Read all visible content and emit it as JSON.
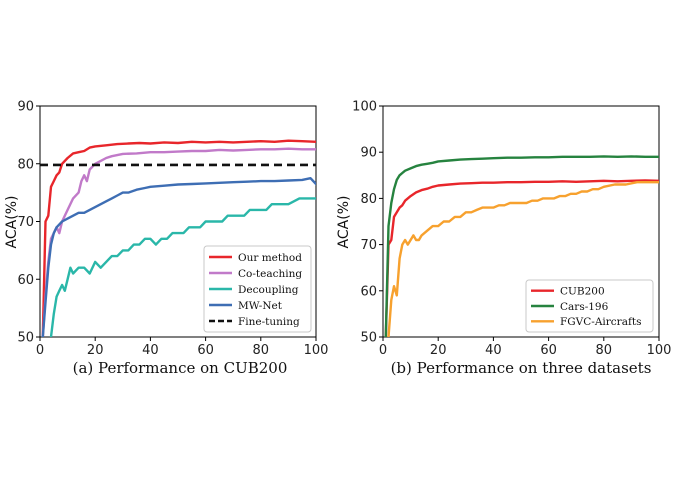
{
  "chart_data": [
    {
      "type": "line",
      "title": "(a) Performance on CUB200",
      "xlabel": "",
      "ylabel": "ACA(%)",
      "xlim": [
        0,
        100
      ],
      "ylim": [
        50,
        90
      ],
      "xticks": [
        "0",
        "20",
        "40",
        "60",
        "80",
        "100"
      ],
      "yticks": [
        "50",
        "60",
        "70",
        "80",
        "90"
      ],
      "legend_position": "bottom-right",
      "series": [
        {
          "name": "Our method",
          "color": "#e8262b",
          "x": [
            1,
            2,
            3,
            4,
            5,
            6,
            7,
            8,
            10,
            12,
            14,
            16,
            18,
            20,
            24,
            28,
            32,
            36,
            40,
            45,
            50,
            55,
            60,
            65,
            70,
            75,
            80,
            85,
            90,
            95,
            100
          ],
          "y": [
            50,
            70,
            71,
            76,
            77,
            78,
            78.5,
            80,
            81,
            81.8,
            82,
            82.2,
            82.8,
            83,
            83.2,
            83.4,
            83.5,
            83.6,
            83.5,
            83.7,
            83.6,
            83.8,
            83.7,
            83.8,
            83.7,
            83.8,
            83.9,
            83.8,
            84,
            83.9,
            83.8
          ]
        },
        {
          "name": "Co-teaching",
          "color": "#c17ac9",
          "x": [
            1,
            2,
            3,
            4,
            5,
            6,
            7,
            8,
            9,
            10,
            12,
            14,
            15,
            16,
            17,
            18,
            20,
            22,
            24,
            26,
            28,
            30,
            35,
            40,
            45,
            50,
            55,
            60,
            65,
            70,
            75,
            80,
            85,
            90,
            95,
            100
          ],
          "y": [
            50,
            57,
            63,
            67,
            68,
            69,
            68,
            70,
            71,
            72,
            74,
            75,
            77,
            78,
            77,
            79,
            80,
            80.5,
            81,
            81.3,
            81.5,
            81.7,
            81.8,
            82,
            82,
            82.1,
            82.2,
            82.2,
            82.4,
            82.3,
            82.4,
            82.5,
            82.5,
            82.6,
            82.5,
            82.5
          ]
        },
        {
          "name": "Decoupling",
          "color": "#2ab7a9",
          "x": [
            4,
            5,
            6,
            7,
            8,
            9,
            10,
            11,
            12,
            14,
            16,
            18,
            20,
            22,
            24,
            26,
            28,
            30,
            32,
            34,
            36,
            38,
            40,
            42,
            44,
            46,
            48,
            50,
            52,
            54,
            56,
            58,
            60,
            62,
            64,
            66,
            68,
            70,
            72,
            74,
            76,
            78,
            80,
            82,
            84,
            86,
            88,
            90,
            92,
            94,
            96,
            98,
            100
          ],
          "y": [
            50,
            54,
            57,
            58,
            59,
            58,
            60,
            62,
            61,
            62,
            62,
            61,
            63,
            62,
            63,
            64,
            64,
            65,
            65,
            66,
            66,
            67,
            67,
            66,
            67,
            67,
            68,
            68,
            68,
            69,
            69,
            69,
            70,
            70,
            70,
            70,
            71,
            71,
            71,
            71,
            72,
            72,
            72,
            72,
            73,
            73,
            73,
            73,
            73.5,
            74,
            74,
            74,
            74
          ]
        },
        {
          "name": "MW-Net",
          "color": "#3e6eb4",
          "x": [
            1,
            2,
            3,
            4,
            5,
            6,
            7,
            8,
            10,
            12,
            14,
            16,
            18,
            20,
            22,
            24,
            26,
            28,
            30,
            32,
            35,
            38,
            40,
            45,
            50,
            55,
            60,
            65,
            70,
            75,
            80,
            85,
            90,
            95,
            98,
            100
          ],
          "y": [
            50,
            56,
            62,
            66,
            68,
            69,
            69.5,
            70,
            70.5,
            71,
            71.5,
            71.5,
            72,
            72.5,
            73,
            73.5,
            74,
            74.5,
            75,
            75,
            75.5,
            75.8,
            76,
            76.2,
            76.4,
            76.5,
            76.6,
            76.7,
            76.8,
            76.9,
            77,
            77,
            77.1,
            77.2,
            77.5,
            76.5
          ]
        },
        {
          "name": "Fine-tuning",
          "color": "#111111",
          "dashed": true,
          "x": [
            0,
            100
          ],
          "y": [
            79.8,
            79.8
          ]
        }
      ]
    },
    {
      "type": "line",
      "title": "(b) Performance on three datasets",
      "xlabel": "",
      "ylabel": "ACA(%)",
      "xlim": [
        0,
        100
      ],
      "ylim": [
        50,
        100
      ],
      "xticks": [
        "0",
        "20",
        "40",
        "60",
        "80",
        "100"
      ],
      "yticks": [
        "50",
        "60",
        "70",
        "80",
        "90",
        "100"
      ],
      "legend_position": "bottom-right",
      "series": [
        {
          "name": "CUB200",
          "color": "#e8262b",
          "x": [
            1,
            2,
            3,
            4,
            5,
            6,
            7,
            8,
            10,
            12,
            14,
            16,
            18,
            20,
            24,
            28,
            32,
            36,
            40,
            45,
            50,
            55,
            60,
            65,
            70,
            75,
            80,
            85,
            90,
            95,
            100
          ],
          "y": [
            50,
            70,
            71,
            76,
            77,
            78,
            78.5,
            79.5,
            80.5,
            81.3,
            81.8,
            82.1,
            82.5,
            82.8,
            83,
            83.2,
            83.3,
            83.4,
            83.4,
            83.5,
            83.5,
            83.6,
            83.6,
            83.7,
            83.6,
            83.7,
            83.8,
            83.7,
            83.8,
            83.9,
            83.8
          ]
        },
        {
          "name": "Cars-196",
          "color": "#26833f",
          "x": [
            1,
            2,
            3,
            4,
            5,
            6,
            7,
            8,
            10,
            12,
            14,
            16,
            18,
            20,
            24,
            28,
            32,
            36,
            40,
            45,
            50,
            55,
            60,
            65,
            70,
            75,
            80,
            85,
            90,
            95,
            100
          ],
          "y": [
            50,
            74,
            79,
            82,
            84,
            85,
            85.5,
            86,
            86.5,
            87,
            87.3,
            87.5,
            87.7,
            88,
            88.2,
            88.4,
            88.5,
            88.6,
            88.7,
            88.8,
            88.8,
            88.9,
            88.9,
            89,
            89,
            89,
            89.1,
            89,
            89.1,
            89,
            89
          ]
        },
        {
          "name": "FGVC-Aircrafts",
          "color": "#f7a12e",
          "x": [
            2,
            3,
            4,
            5,
            6,
            7,
            8,
            9,
            10,
            11,
            12,
            13,
            14,
            16,
            18,
            20,
            22,
            24,
            26,
            28,
            30,
            32,
            34,
            36,
            38,
            40,
            42,
            44,
            46,
            48,
            50,
            52,
            54,
            56,
            58,
            60,
            62,
            64,
            66,
            68,
            70,
            72,
            74,
            76,
            78,
            80,
            84,
            88,
            92,
            96,
            100
          ],
          "y": [
            50,
            58,
            61,
            59,
            67,
            70,
            71,
            70,
            71,
            72,
            71,
            71,
            72,
            73,
            74,
            74,
            75,
            75,
            76,
            76,
            77,
            77,
            77.5,
            78,
            78,
            78,
            78.5,
            78.5,
            79,
            79,
            79,
            79,
            79.5,
            79.5,
            80,
            80,
            80,
            80.5,
            80.5,
            81,
            81,
            81.5,
            81.5,
            82,
            82,
            82.5,
            83,
            83,
            83.5,
            83.5,
            83.5
          ]
        }
      ]
    }
  ]
}
